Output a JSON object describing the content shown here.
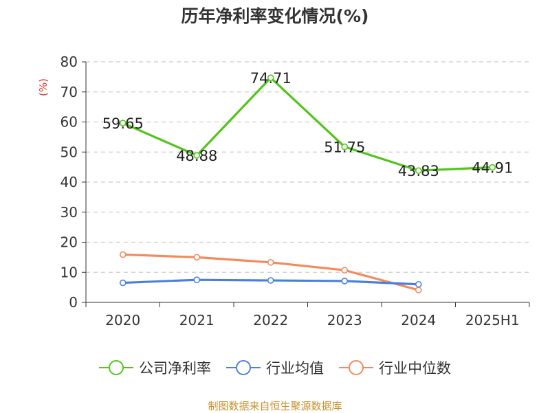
{
  "chart_data": {
    "type": "line",
    "title": "历年净利率变化情况(%)",
    "ylabel": "(%)",
    "xlabel": "",
    "categories": [
      "2020",
      "2021",
      "2022",
      "2023",
      "2024",
      "2025H1"
    ],
    "ylim": [
      0,
      80
    ],
    "yticks": [
      0,
      10,
      20,
      30,
      40,
      50,
      60,
      70,
      80
    ],
    "grid": true,
    "legend_position": "bottom",
    "series": [
      {
        "name": "公司净利率",
        "color": "#52c41a",
        "values": [
          59.65,
          48.88,
          74.71,
          51.75,
          43.83,
          44.91
        ],
        "show_labels": true
      },
      {
        "name": "行业均值",
        "color": "#4a7fe0",
        "values": [
          6.5,
          7.5,
          7.3,
          7.1,
          6.0,
          null
        ],
        "show_labels": false
      },
      {
        "name": "行业中位数",
        "color": "#f5895a",
        "values": [
          15.9,
          15.0,
          13.3,
          10.7,
          4.1,
          null
        ],
        "show_labels": false
      }
    ]
  },
  "source": "制图数据来自恒生聚源数据库"
}
